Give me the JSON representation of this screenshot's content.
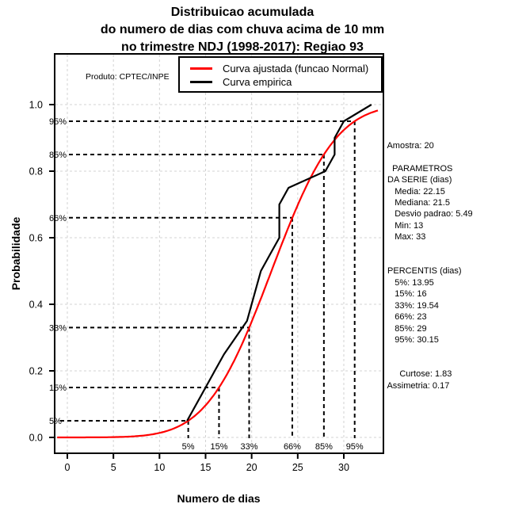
{
  "title_lines": [
    "Distribuicao acumulada",
    "do numero de dias com chuva acima de 10 mm",
    "no trimestre NDJ (1998-2017): Regiao 93"
  ],
  "watermark": "Produto: CPTEC/INPE",
  "legend": {
    "items": [
      {
        "label": "Curva ajustada (funcao Normal)",
        "color": "#ff0000"
      },
      {
        "label": "Curva empirica",
        "color": "#000000"
      }
    ]
  },
  "chart_data": {
    "type": "line",
    "title": "Distribuicao acumulada do numero de dias com chuva acima de 10 mm no trimestre NDJ (1998-2017): Regiao 93",
    "xlabel": "Numero de dias",
    "ylabel": "Probabilidade",
    "xlim": [
      -1.3,
      34.3
    ],
    "ylim": [
      -0.05,
      1.15
    ],
    "grid": true,
    "legend_position": "top-right",
    "x_ticks": [
      0,
      5,
      10,
      15,
      20,
      25,
      30
    ],
    "y_ticks": [
      0.0,
      0.2,
      0.4,
      0.6,
      0.8,
      1.0
    ],
    "y_tick_labels": [
      "0.0",
      "0.2",
      "0.4",
      "0.6",
      "0.8",
      "1.0"
    ],
    "colors": {
      "grid": "#d3d3d3",
      "axis": "#000000",
      "fitted": "#ff0000",
      "empirical": "#000000"
    },
    "series": [
      {
        "name": "Curva ajustada (funcao Normal)",
        "kind": "normal_cdf",
        "color": "#ff0000",
        "mean": 22.15,
        "sd": 5.49,
        "x_start": -1.1,
        "x_end": 33.75
      },
      {
        "name": "Curva empirica",
        "kind": "polyline",
        "color": "#000000",
        "points": [
          [
            13,
            0.05
          ],
          [
            15,
            0.15
          ],
          [
            16,
            0.2
          ],
          [
            17,
            0.25
          ],
          [
            19.5,
            0.35
          ],
          [
            21,
            0.5
          ],
          [
            22,
            0.55
          ],
          [
            23,
            0.6
          ],
          [
            23,
            0.7
          ],
          [
            24,
            0.75
          ],
          [
            28,
            0.8
          ],
          [
            29,
            0.85
          ],
          [
            29,
            0.9
          ],
          [
            30,
            0.95
          ],
          [
            33,
            1.0
          ]
        ]
      }
    ],
    "percentile_guides": [
      {
        "label": "5%",
        "p": 0.05,
        "x": 13.12
      },
      {
        "label": "15%",
        "p": 0.15,
        "x": 16.46
      },
      {
        "label": "33%",
        "p": 0.33,
        "x": 19.73
      },
      {
        "label": "66%",
        "p": 0.66,
        "x": 24.41
      },
      {
        "label": "85%",
        "p": 0.85,
        "x": 27.84
      },
      {
        "label": "95%",
        "p": 0.95,
        "x": 31.18
      }
    ]
  },
  "stats_panel": {
    "lines": [
      " Amostra: 20",
      "",
      "   PARAMETROS",
      " DA SERIE (dias)",
      "    Media: 22.15",
      "    Mediana: 21.5",
      "    Desvio padrao: 5.49",
      "    Min: 13",
      "    Max: 33",
      "",
      "",
      " PERCENTIS (dias)",
      "    5%: 13.95",
      "    15%: 16",
      "    33%: 19.54",
      "    66%: 23",
      "    85%: 29",
      "    95%: 30.15",
      "",
      "",
      "      Curtose: 1.83",
      " Assimetria: 0.17"
    ]
  }
}
